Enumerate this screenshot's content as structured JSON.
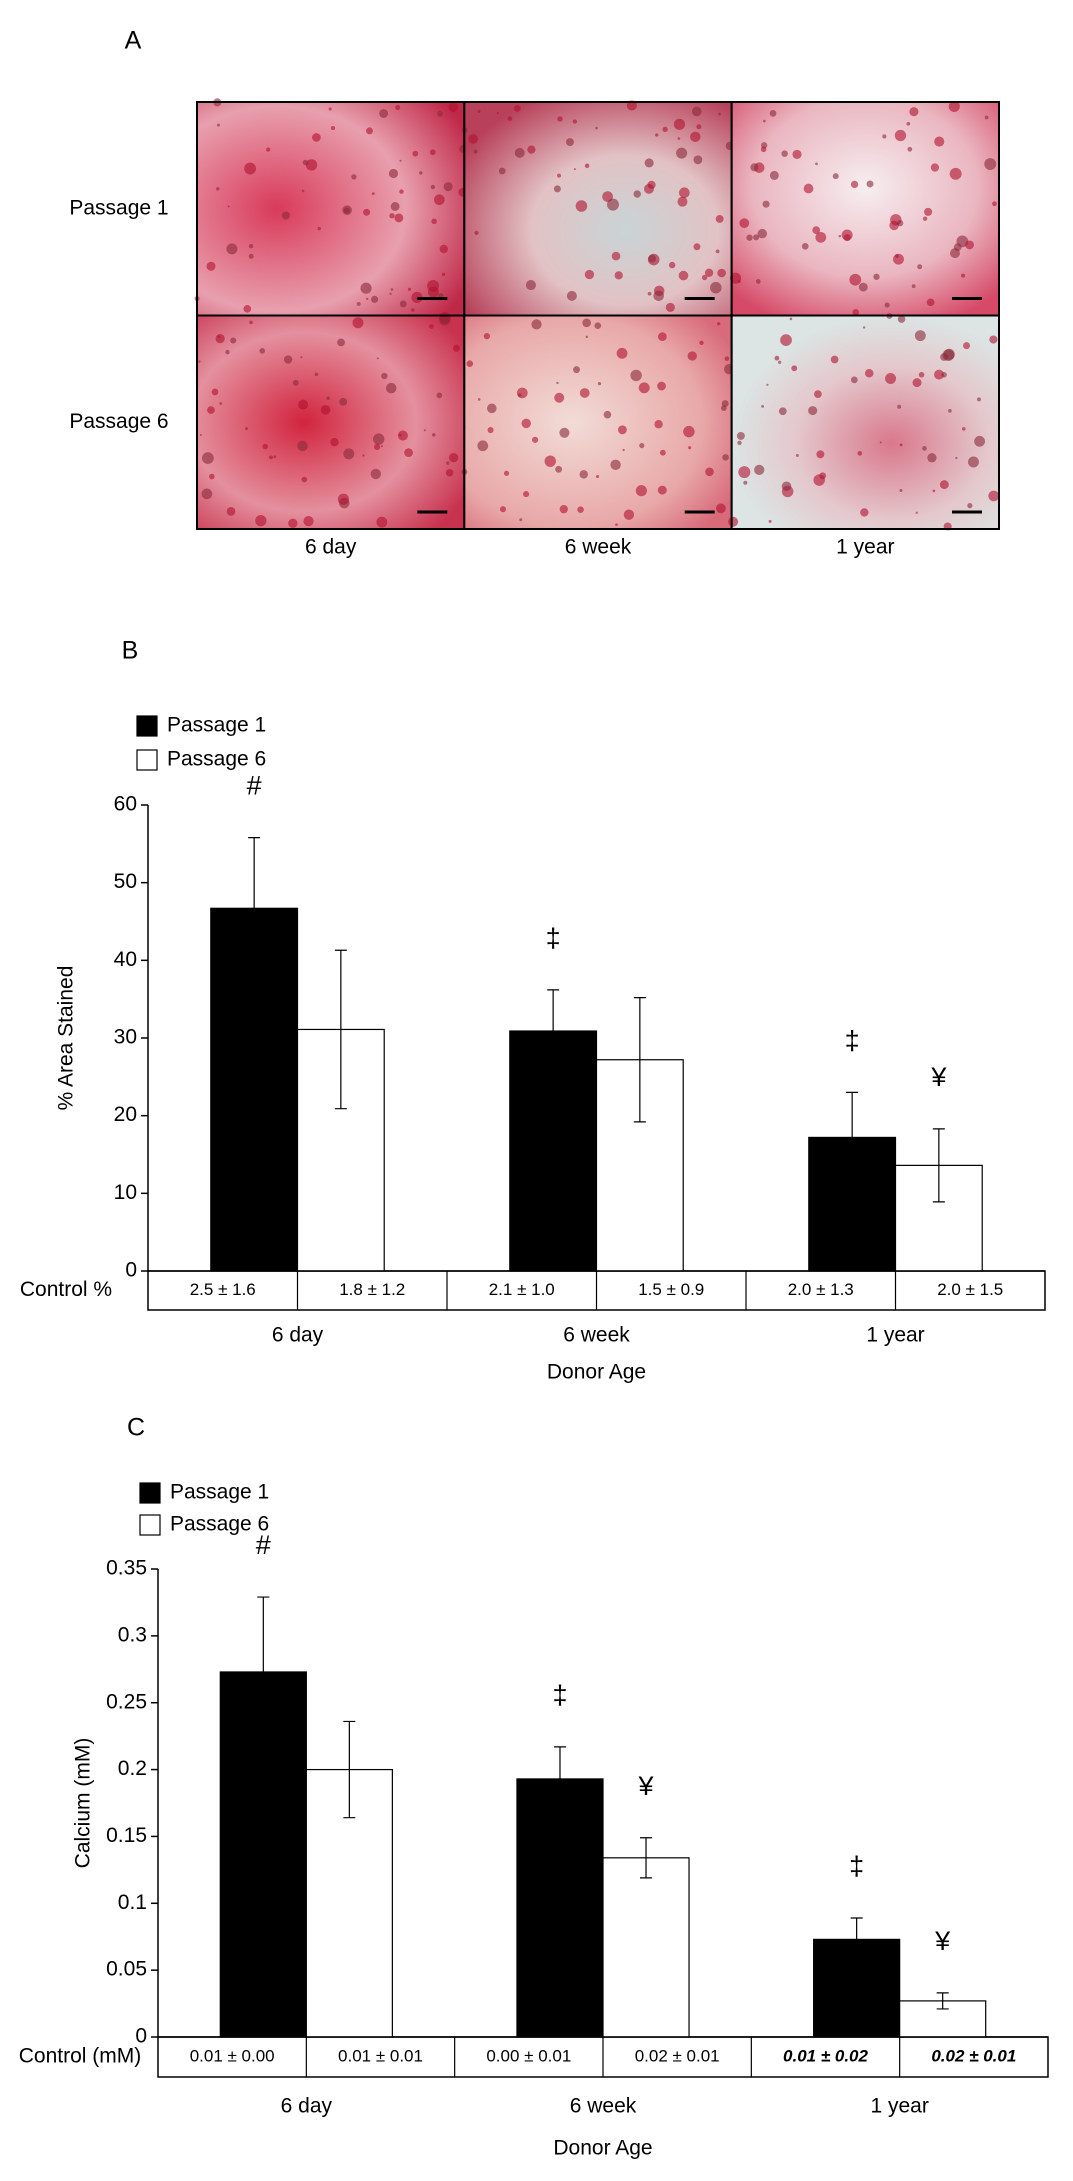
{
  "panel_a": {
    "label": "A",
    "rows": [
      "Passage 1",
      "Passage 6"
    ],
    "columns": [
      "6 day",
      "6 week",
      "1 year"
    ]
  },
  "chart_data": [
    {
      "type": "bar",
      "label": "B",
      "ylabel": "% Area Stained",
      "xlabel": "Donor Age",
      "categories": [
        "6 day",
        "6 week",
        "1 year"
      ],
      "series": [
        {
          "name": "Passage 1",
          "color": "#000000",
          "values": [
            46.7,
            30.9,
            17.2
          ],
          "errors": [
            9.1,
            5.3,
            5.8
          ],
          "control": [
            "2.5 ± 1.6",
            "2.1 ± 1.0",
            "2.0 ± 1.3"
          ]
        },
        {
          "name": "Passage 6",
          "color": "#ffffff",
          "values": [
            31.1,
            27.2,
            13.6
          ],
          "errors": [
            10.2,
            8.0,
            4.7
          ],
          "control": [
            "1.8 ± 1.2",
            "1.5 ± 0.9",
            "2.0 ± 1.5"
          ]
        }
      ],
      "control_label": "Control %",
      "annotations": [
        {
          "text": "#",
          "series": 0,
          "category": 0
        },
        {
          "text": "‡",
          "series": 0,
          "category": 1
        },
        {
          "text": "‡",
          "series": 0,
          "category": 2
        },
        {
          "text": "¥",
          "series": 1,
          "category": 2
        }
      ],
      "ylim": [
        0,
        60
      ],
      "yticks": [
        0,
        10,
        20,
        30,
        40,
        50,
        60
      ],
      "legend": "top-left"
    },
    {
      "type": "bar",
      "label": "C",
      "ylabel": "Calcium (mM)",
      "xlabel": "Donor Age",
      "categories": [
        "6 day",
        "6 week",
        "1 year"
      ],
      "series": [
        {
          "name": "Passage 1",
          "color": "#000000",
          "values": [
            0.273,
            0.193,
            0.073
          ],
          "errors": [
            0.056,
            0.024,
            0.016
          ],
          "control": [
            "0.01 ± 0.00",
            "0.00 ± 0.01",
            "0.01 ± 0.02"
          ]
        },
        {
          "name": "Passage 6",
          "color": "#ffffff",
          "values": [
            0.2,
            0.134,
            0.027
          ],
          "errors": [
            0.036,
            0.015,
            0.006
          ],
          "control": [
            "0.01 ± 0.01",
            "0.02 ± 0.01",
            "0.02 ± 0.01"
          ]
        }
      ],
      "control_label": "Control (mM)",
      "control_bold_italic": [
        2
      ],
      "annotations": [
        {
          "text": "#",
          "series": 0,
          "category": 0
        },
        {
          "text": "‡",
          "series": 0,
          "category": 1
        },
        {
          "text": "¥",
          "series": 1,
          "category": 1
        },
        {
          "text": "‡",
          "series": 0,
          "category": 2
        },
        {
          "text": "¥",
          "series": 1,
          "category": 2
        }
      ],
      "ylim": [
        0,
        0.35
      ],
      "yticks": [
        0,
        0.05,
        0.1,
        0.15,
        0.2,
        0.25,
        0.3,
        0.35
      ],
      "legend": "top-left"
    }
  ]
}
